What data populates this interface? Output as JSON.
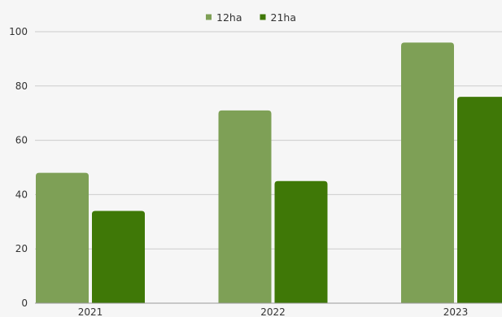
{
  "chart_data": {
    "type": "bar",
    "title": "",
    "xlabel": "",
    "ylabel": "",
    "categories": [
      "2021",
      "2022",
      "2023"
    ],
    "series": [
      {
        "name": "12ha",
        "color": "#7ea056",
        "values": [
          48,
          71,
          96
        ]
      },
      {
        "name": "21ha",
        "color": "#3f7807",
        "values": [
          34,
          45,
          76
        ]
      }
    ],
    "ylim": [
      0,
      100
    ],
    "yticks": [
      "0",
      "20",
      "40",
      "60",
      "80",
      "100"
    ],
    "grid": true,
    "legend": "top-center"
  }
}
